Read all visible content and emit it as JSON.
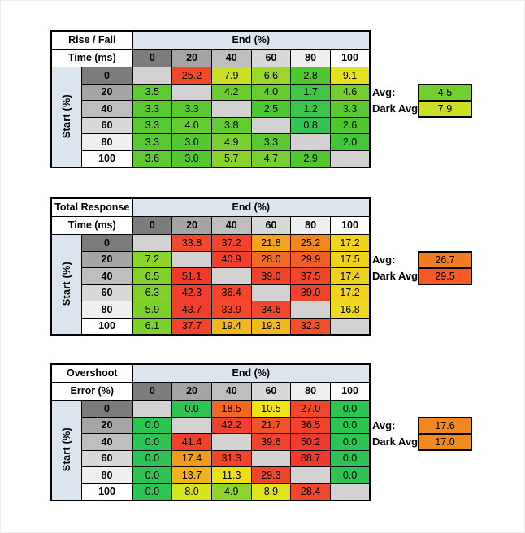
{
  "shared": {
    "avg_label": "Avg:",
    "dark_avg_label": "Dark Avg:",
    "header_gray_ramp": [
      "#7C7C7C",
      "#A5A5A5",
      "#BEBEBE",
      "#D8D8D8",
      "#EFEFEF",
      "#FFFFFF"
    ],
    "axis_band_color": "#DCE4EE",
    "blank_cell_color": "#D3D1D1"
  },
  "chart_data": [
    {
      "type": "heatmap",
      "name": "rise-fall-time",
      "title_line1": "Rise / Fall",
      "title_line2": "Time (ms)",
      "col_axis_label": "End (%)",
      "row_axis_label": "Start (%)",
      "columns": [
        0,
        20,
        40,
        60,
        80,
        100
      ],
      "rows": [
        0,
        20,
        40,
        60,
        80,
        100
      ],
      "values": [
        [
          null,
          25.2,
          7.9,
          6.6,
          2.8,
          9.1
        ],
        [
          3.5,
          null,
          4.2,
          4.0,
          1.7,
          4.6
        ],
        [
          3.3,
          3.3,
          null,
          2.5,
          1.2,
          3.3
        ],
        [
          3.3,
          4.0,
          3.8,
          null,
          0.8,
          2.6
        ],
        [
          3.3,
          3.0,
          4.9,
          3.3,
          null,
          2.0
        ],
        [
          3.6,
          3.0,
          5.7,
          4.7,
          2.9,
          null
        ]
      ],
      "cell_colors": [
        [
          null,
          "#F1472B",
          "#C9E026",
          "#9BD62B",
          "#4FC72F",
          "#E4E21E"
        ],
        [
          "#5CCA31",
          null,
          "#6CCD31",
          "#66CC31",
          "#40C545",
          "#75CE31"
        ],
        [
          "#58C930",
          "#58C930",
          null,
          "#4CC733",
          "#3AC44C",
          "#58C930"
        ],
        [
          "#58C930",
          "#66CC31",
          "#62CB31",
          null,
          "#35C356",
          "#4EC732"
        ],
        [
          "#58C930",
          "#54C830",
          "#7BD032",
          "#58C930",
          null,
          "#45C63A"
        ],
        [
          "#5DCA31",
          "#54C830",
          "#8AD32D",
          "#77CF31",
          "#51C830",
          null
        ]
      ],
      "avg": {
        "value": 4.5,
        "color": "#73CE31"
      },
      "dark_avg": {
        "value": 7.9,
        "color": "#C9E026"
      }
    },
    {
      "type": "heatmap",
      "name": "total-response-time",
      "title_line1": "Total Response",
      "title_line2": "Time (ms)",
      "col_axis_label": "End (%)",
      "row_axis_label": "Start (%)",
      "columns": [
        0,
        20,
        40,
        60,
        80,
        100
      ],
      "rows": [
        0,
        20,
        40,
        60,
        80,
        100
      ],
      "values": [
        [
          null,
          33.8,
          37.2,
          21.8,
          25.2,
          17.2
        ],
        [
          7.2,
          null,
          40.9,
          28.0,
          29.9,
          17.5
        ],
        [
          6.5,
          51.1,
          null,
          39.0,
          37.5,
          17.4
        ],
        [
          6.3,
          42.3,
          36.4,
          null,
          39.0,
          17.2
        ],
        [
          5.9,
          43.7,
          33.9,
          34.6,
          null,
          16.8
        ],
        [
          6.1,
          37.7,
          19.4,
          19.3,
          32.3,
          null
        ]
      ],
      "cell_colors": [
        [
          null,
          "#F1492C",
          "#F1442C",
          "#F4A31E",
          "#F3851F",
          "#EFD31C"
        ],
        [
          "#8BD42A",
          null,
          "#F1412D",
          "#F26B24",
          "#F25D28",
          "#EFD21C"
        ],
        [
          "#83D22B",
          "#F13A2E",
          null,
          "#F1432C",
          "#F1452C",
          "#EFD21C"
        ],
        [
          "#80D12C",
          "#F1402D",
          "#F1462C",
          null,
          "#F1432C",
          "#EFD31C"
        ],
        [
          "#7BD02C",
          "#F13F2D",
          "#F14A2B",
          "#F1482B",
          null,
          "#EED91D"
        ],
        [
          "#7ED12C",
          "#F1442C",
          "#F0B81D",
          "#F0BA1D",
          "#F2502A",
          null
        ]
      ],
      "avg": {
        "value": 26.7,
        "color": "#F37C20"
      },
      "dark_avg": {
        "value": 29.5,
        "color": "#F25A28"
      }
    },
    {
      "type": "heatmap",
      "name": "overshoot-error",
      "title_line1": "Overshoot",
      "title_line2": "Error (%)",
      "col_axis_label": "End (%)",
      "row_axis_label": "Start (%)",
      "columns": [
        0,
        20,
        40,
        60,
        80,
        100
      ],
      "rows": [
        0,
        20,
        40,
        60,
        80,
        100
      ],
      "values": [
        [
          null,
          0.0,
          18.5,
          10.5,
          27.0,
          0.0
        ],
        [
          0.0,
          null,
          42.2,
          21.7,
          36.5,
          0.0
        ],
        [
          0.0,
          41.4,
          null,
          39.6,
          50.2,
          0.0
        ],
        [
          0.0,
          17.4,
          31.3,
          null,
          88.7,
          0.0
        ],
        [
          0.0,
          13.7,
          11.3,
          29.3,
          null,
          0.0
        ],
        [
          0.0,
          8.0,
          4.9,
          8.9,
          28.4,
          null
        ]
      ],
      "cell_colors": [
        [
          null,
          "#2EC454",
          "#F26822",
          "#F0E414",
          "#F1482B",
          "#2EC454"
        ],
        [
          "#2EC454",
          null,
          "#F1402D",
          "#F1522C",
          "#F1432C",
          "#2EC454"
        ],
        [
          "#2EC454",
          "#F1412D",
          null,
          "#F1422C",
          "#F13C2D",
          "#2EC454"
        ],
        [
          "#2EC454",
          "#F29A1E",
          "#F1452C",
          null,
          "#F1392E",
          "#2EC454"
        ],
        [
          "#2EC454",
          "#F0B31C",
          "#EDDF17",
          "#F1462B",
          null,
          "#2EC454"
        ],
        [
          "#2EC454",
          "#D8E31F",
          "#8ED42A",
          "#DFE51C",
          "#F1472B",
          null
        ]
      ],
      "avg": {
        "value": 17.6,
        "color": "#F1871E"
      },
      "dark_avg": {
        "value": 17.0,
        "color": "#F18B1E"
      }
    }
  ]
}
